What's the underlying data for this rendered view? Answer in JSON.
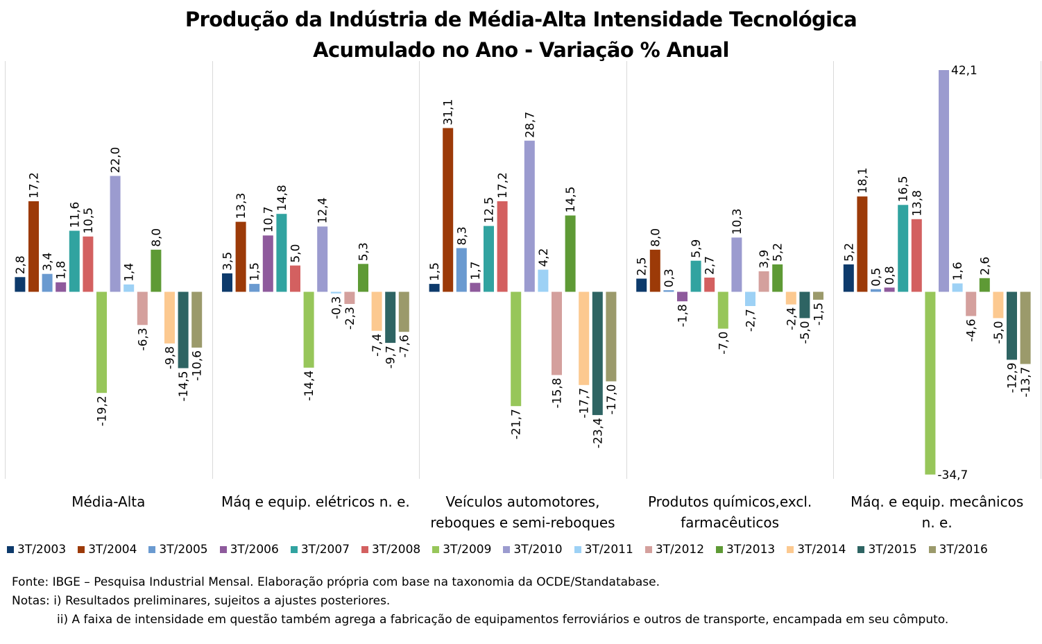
{
  "title": {
    "line1": "Produção da Indústria de Média-Alta Intensidade Tecnológica",
    "line2": "Acumulado no Ano - Variação % Anual"
  },
  "chart_data": {
    "type": "bar",
    "title": "Produção da Indústria de Média-Alta Intensidade Tecnológica Acumulado no Ano - Variação % Anual",
    "categories": [
      [
        "Média-Alta"
      ],
      [
        "Máq e equip. elétricos n. e."
      ],
      [
        "Veículos automotores,",
        "reboques e semi-reboques"
      ],
      [
        "Produtos químicos,excl.",
        "farmacêuticos"
      ],
      [
        "Máq. e equip. mecânicos",
        "n. e."
      ]
    ],
    "series": [
      {
        "name": "3T/2003",
        "color": "#0d3a6b",
        "values": [
          2.8,
          3.5,
          1.5,
          2.5,
          5.2
        ]
      },
      {
        "name": "3T/2004",
        "color": "#9c3a08",
        "values": [
          17.2,
          13.3,
          31.1,
          8.0,
          18.1
        ]
      },
      {
        "name": "3T/2005",
        "color": "#6a9ad0",
        "values": [
          3.4,
          1.5,
          8.3,
          0.3,
          0.5
        ]
      },
      {
        "name": "3T/2006",
        "color": "#8e5a9c",
        "values": [
          1.8,
          10.7,
          1.7,
          -1.8,
          0.8
        ]
      },
      {
        "name": "3T/2007",
        "color": "#31a3a0",
        "values": [
          11.6,
          14.8,
          12.5,
          5.9,
          16.5
        ]
      },
      {
        "name": "3T/2008",
        "color": "#d36060",
        "values": [
          10.5,
          5.0,
          17.2,
          2.7,
          13.8
        ]
      },
      {
        "name": "3T/2009",
        "color": "#97c65a",
        "values": [
          -19.2,
          -14.4,
          -21.7,
          -7.0,
          -34.7
        ]
      },
      {
        "name": "3T/2010",
        "color": "#9b9bcf",
        "values": [
          22.0,
          12.4,
          28.7,
          10.3,
          42.1
        ]
      },
      {
        "name": "3T/2011",
        "color": "#9dd1f5",
        "values": [
          1.4,
          -0.3,
          4.2,
          -2.7,
          1.6
        ]
      },
      {
        "name": "3T/2012",
        "color": "#d4a09d",
        "values": [
          -6.3,
          -2.3,
          -15.8,
          3.9,
          -4.6
        ]
      },
      {
        "name": "3T/2013",
        "color": "#5e9a35",
        "values": [
          8.0,
          5.3,
          14.5,
          5.2,
          2.6
        ]
      },
      {
        "name": "3T/2014",
        "color": "#fcc990",
        "values": [
          -9.8,
          -7.4,
          -17.7,
          -2.4,
          -5.0
        ]
      },
      {
        "name": "3T/2015",
        "color": "#2e6463",
        "values": [
          -14.5,
          -9.7,
          -23.4,
          -5.0,
          -12.9
        ]
      },
      {
        "name": "3T/2016",
        "color": "#9b9a6b",
        "values": [
          -10.6,
          -7.6,
          -17.0,
          -1.5,
          -13.7
        ]
      }
    ],
    "ylim": [
      -35.5,
      44.5
    ],
    "grid": false,
    "legend_position": "bottom"
  },
  "notes": {
    "source": "Fonte: IBGE – Pesquisa Industrial Mensal. Elaboração própria com base na taxonomia da OCDE/Standatabase.",
    "note1": "Notas: i) Resultados preliminares, sujeitos a ajustes posteriores.",
    "note2": "ii) A faixa de intensidade em questão também agrega a fabricação de equipamentos ferroviários e outros de transporte, encampada em seu cômputo."
  }
}
